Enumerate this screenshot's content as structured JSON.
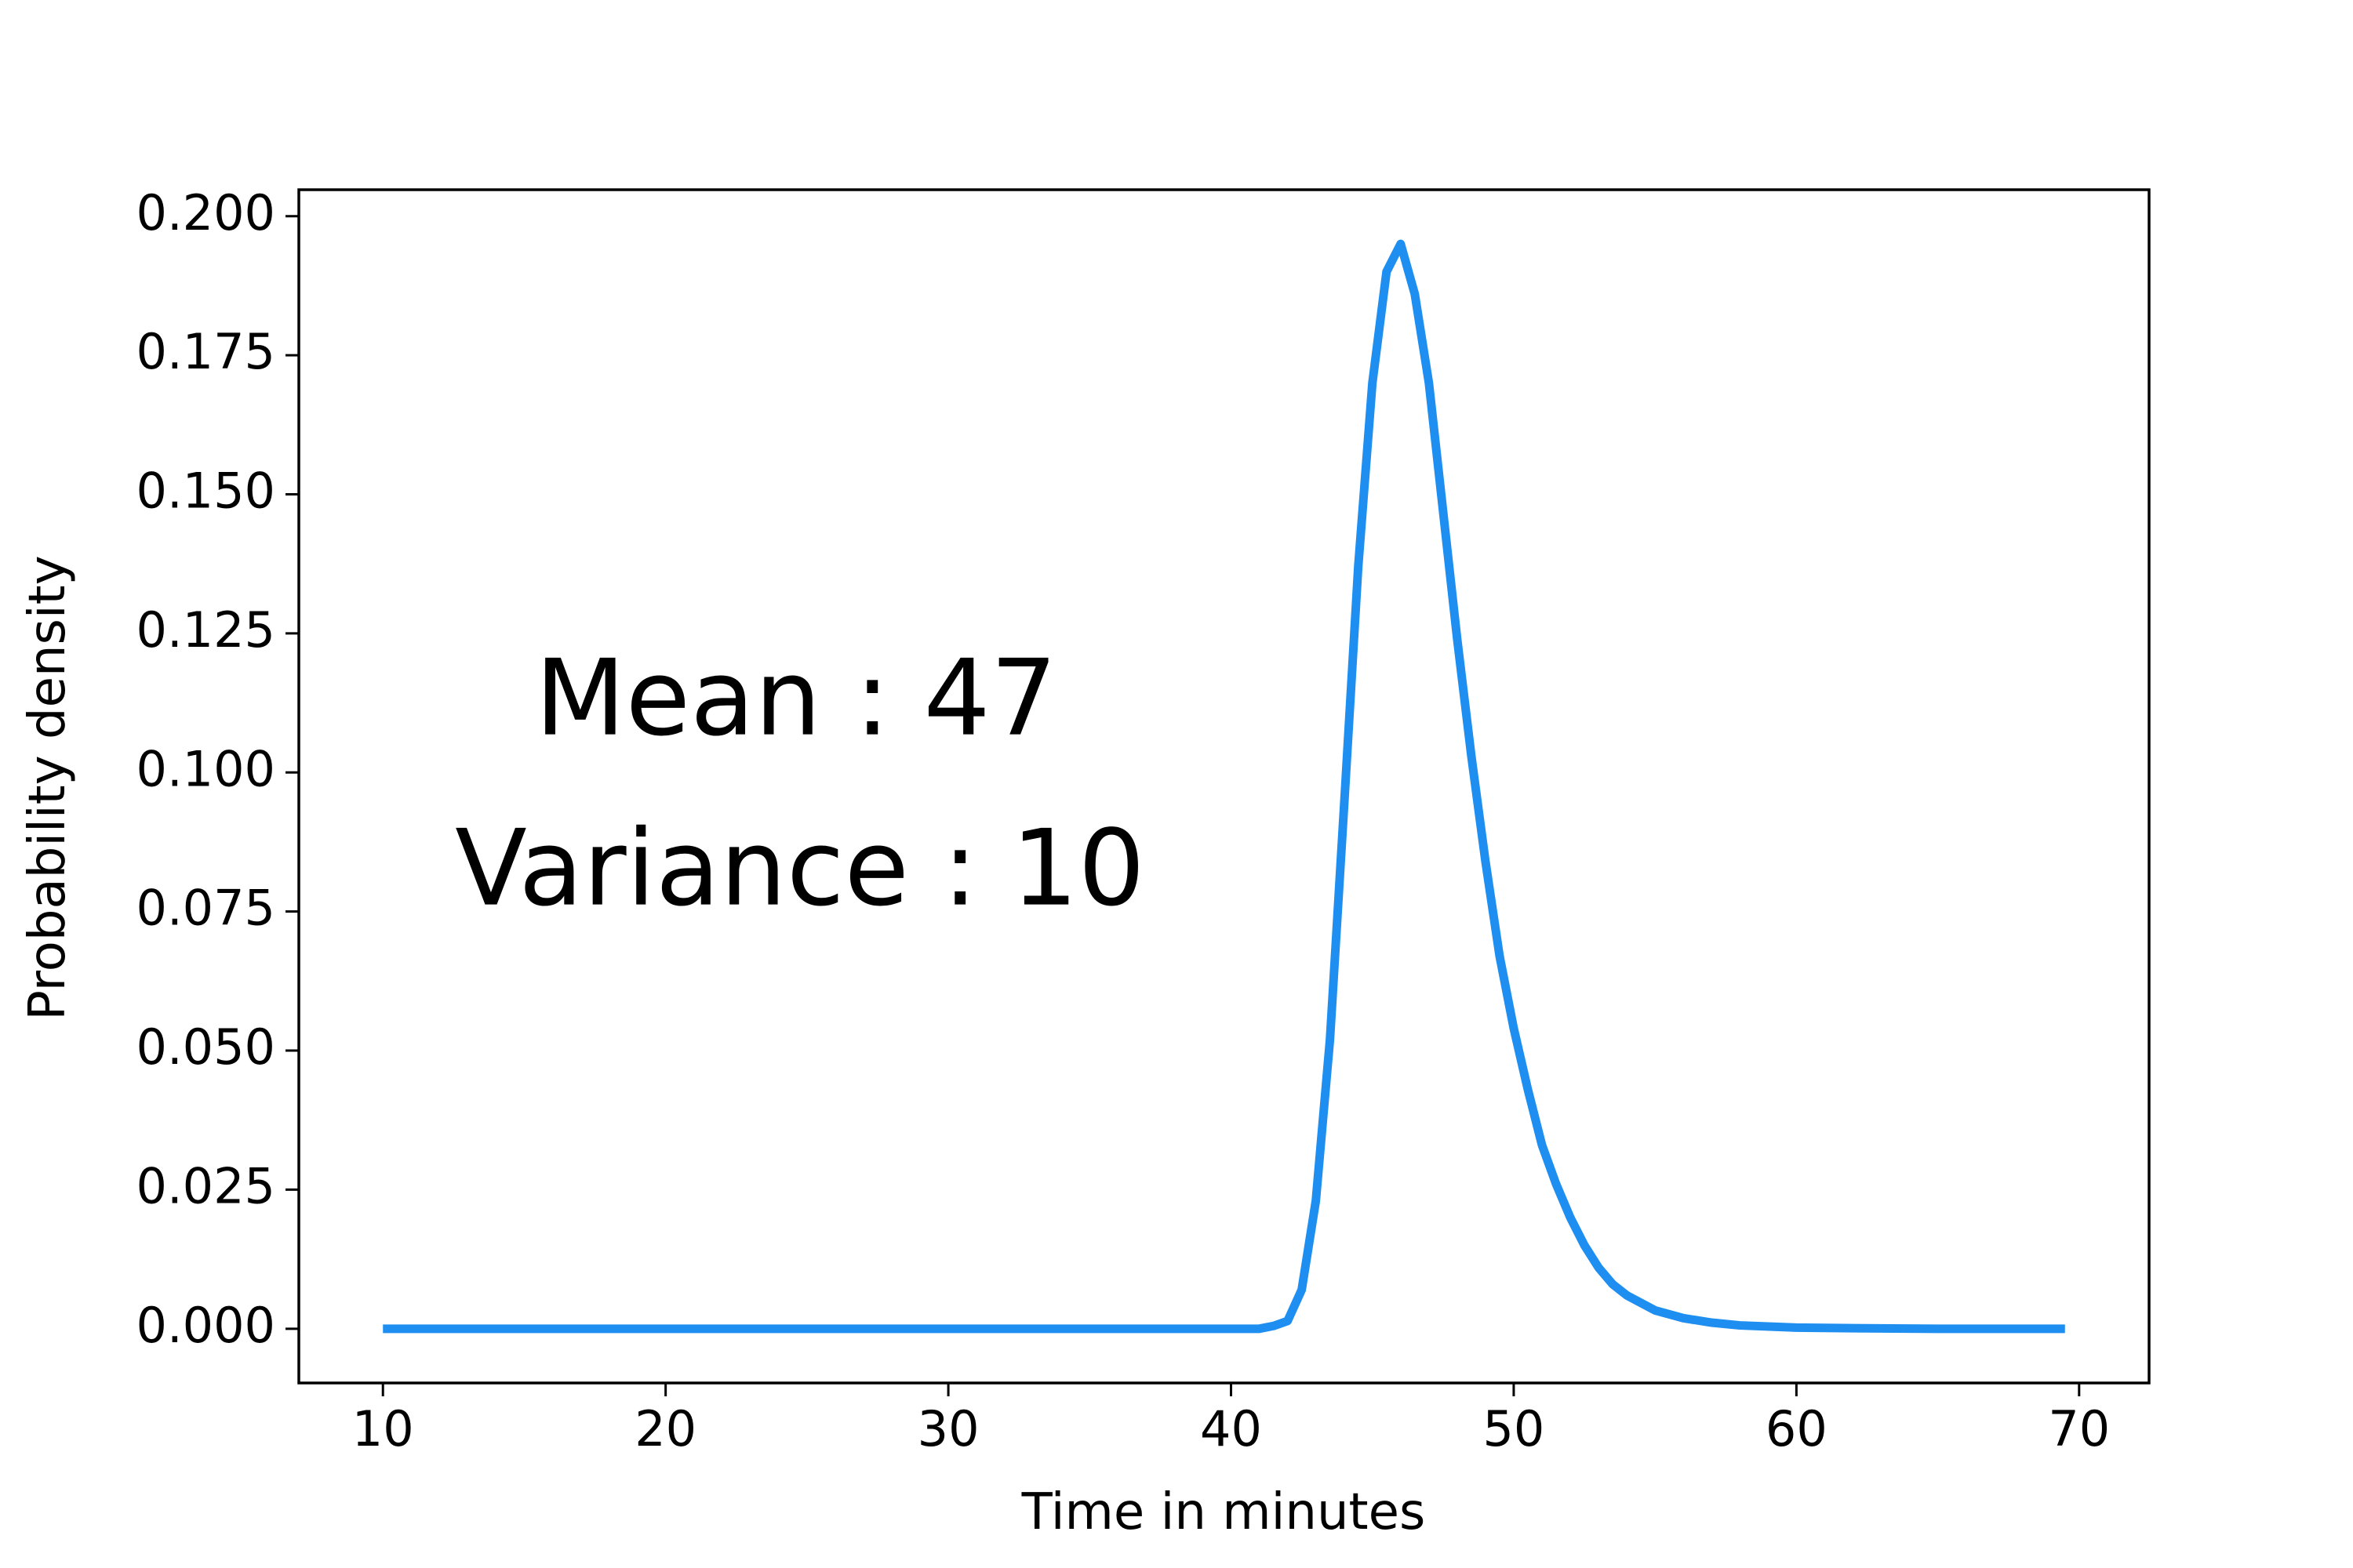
{
  "chart_data": {
    "type": "line",
    "xlabel": "Time in minutes",
    "ylabel": "Probability density",
    "annotations": [
      "Mean : 47",
      "Variance : 10"
    ],
    "x": [
      10,
      20,
      30,
      40,
      41,
      41.5,
      42,
      42.5,
      43,
      43.5,
      44,
      44.5,
      45,
      45.5,
      46,
      46.5,
      47,
      47.5,
      48,
      48.5,
      49,
      49.5,
      50,
      50.5,
      51,
      51.5,
      52,
      52.5,
      53,
      53.5,
      54,
      55,
      56,
      57,
      58,
      60,
      62,
      65,
      69.5
    ],
    "series": [
      {
        "name": "density",
        "color": "#1e8ff0",
        "values": [
          0,
          0,
          0,
          0,
          0,
          0.0005,
          0.0014,
          0.007,
          0.023,
          0.052,
          0.094,
          0.137,
          0.17,
          0.19,
          0.195,
          0.186,
          0.17,
          0.147,
          0.124,
          0.103,
          0.084,
          0.067,
          0.054,
          0.043,
          0.033,
          0.026,
          0.02,
          0.015,
          0.011,
          0.008,
          0.006,
          0.0033,
          0.0019,
          0.0011,
          0.0006,
          0.0002,
          0.0001,
          0,
          0
        ]
      }
    ],
    "xlim": [
      7.025,
      72.475
    ],
    "ylim": [
      -0.00975,
      0.20475
    ],
    "xticks": [
      10,
      20,
      30,
      40,
      50,
      60,
      70
    ],
    "yticks": [
      {
        "value": 0,
        "label": "0.000"
      },
      {
        "value": 0.025,
        "label": "0.025"
      },
      {
        "value": 0.05,
        "label": "0.050"
      },
      {
        "value": 0.075,
        "label": "0.075"
      },
      {
        "value": 0.1,
        "label": "0.100"
      },
      {
        "value": 0.125,
        "label": "0.125"
      },
      {
        "value": 0.15,
        "label": "0.150"
      },
      {
        "value": 0.175,
        "label": "0.175"
      },
      {
        "value": 0.2,
        "label": "0.200"
      }
    ],
    "grid": false
  }
}
